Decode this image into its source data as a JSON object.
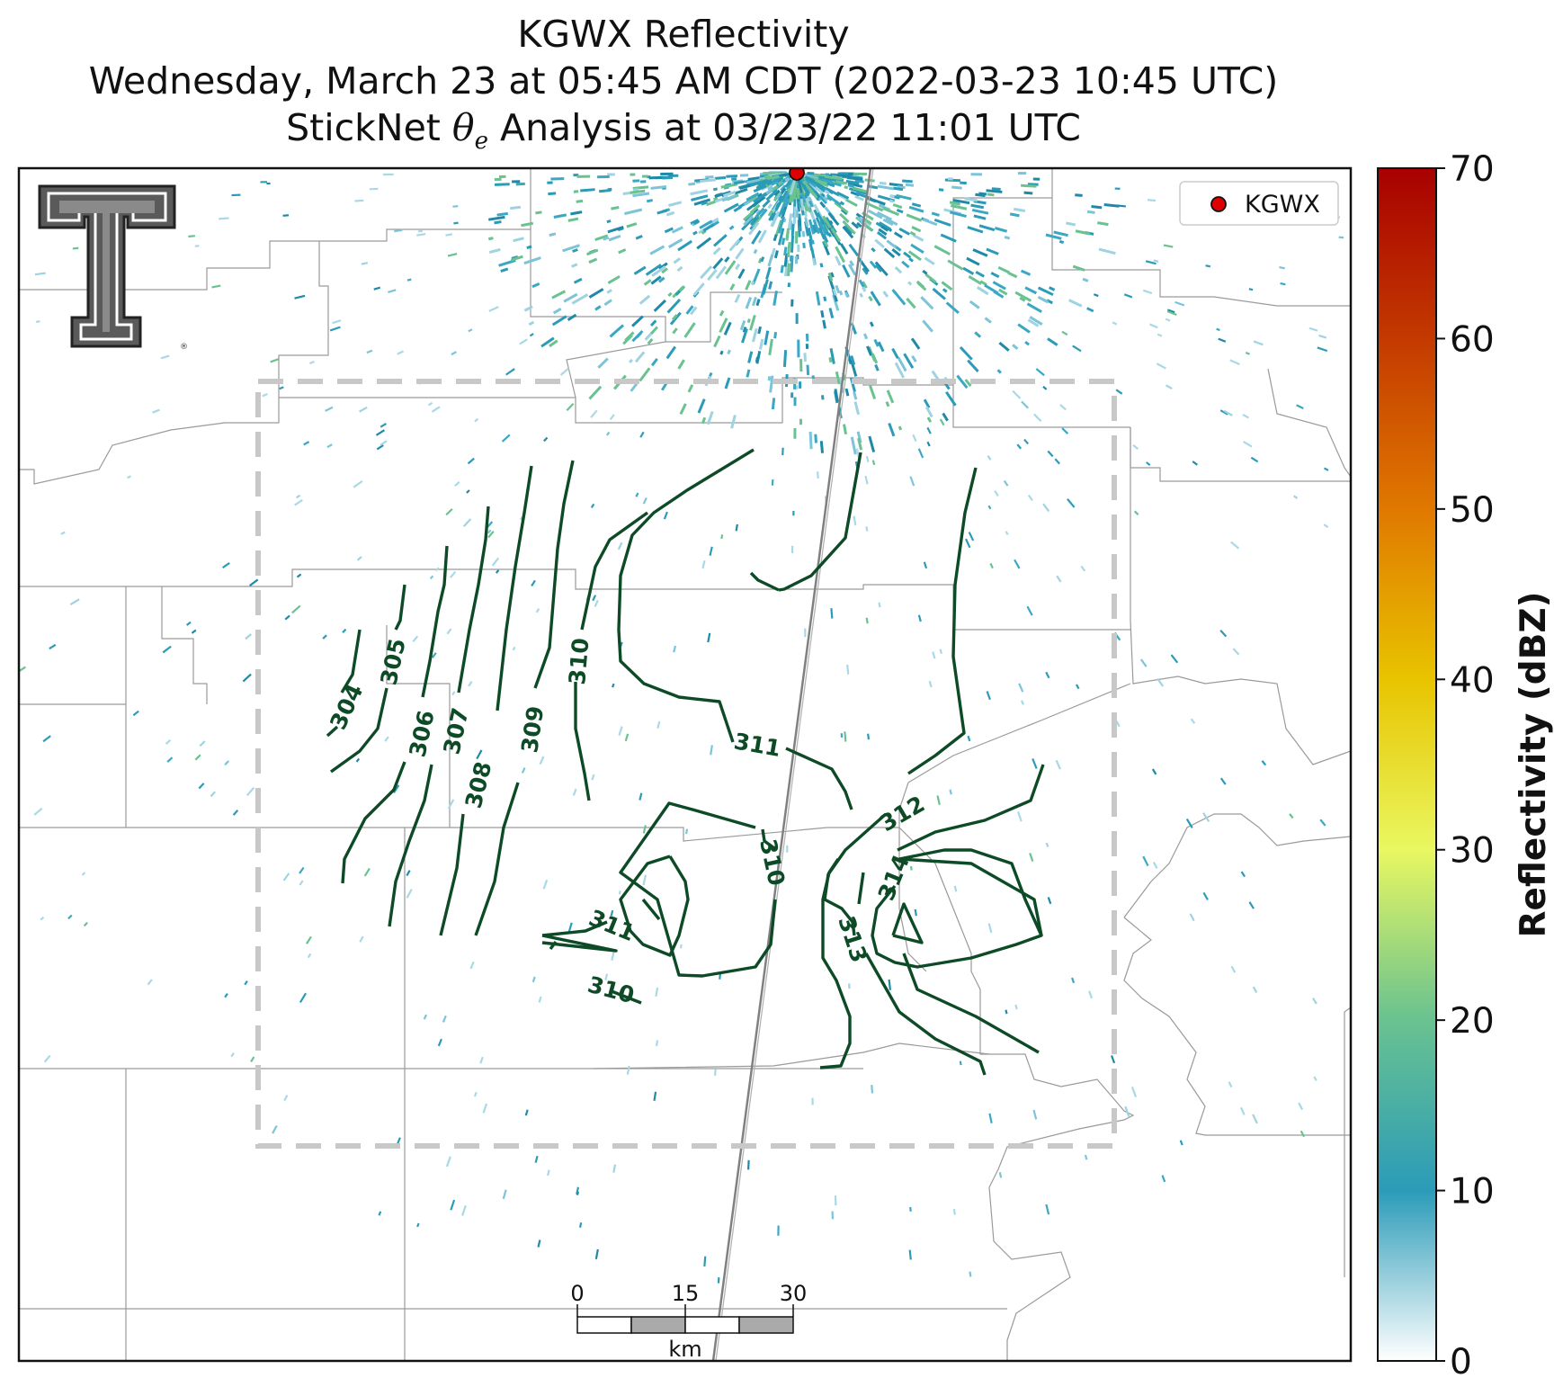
{
  "title": {
    "line1": "KGWX Reflectivity",
    "line2": "Wednesday, March 23 at 05:45 AM CDT (2022-03-23 10:45 UTC)",
    "line3": "StickNet θe Analysis at 03/23/22 11:01 UTC"
  },
  "legend": {
    "marker_label": "KGWX",
    "marker_color": "#dd0000"
  },
  "colorbar": {
    "label": "Reflectivity (dBZ)",
    "min": 0,
    "max": 70,
    "ticks": [
      "0",
      "10",
      "20",
      "30",
      "40",
      "50",
      "60",
      "70"
    ],
    "stops": [
      "#ffffff",
      "#2b9bb8",
      "#69c290",
      "#e9f761",
      "#e8c400",
      "#e07800",
      "#c33a00",
      "#a80000"
    ]
  },
  "contours": {
    "color": "#0d4a26",
    "labels": [
      "304",
      "305",
      "306",
      "307",
      "308",
      "309",
      "310",
      "311",
      "311",
      "310",
      "312",
      "314",
      "313",
      "310"
    ]
  },
  "scalebar": {
    "ticks": [
      "0",
      "15",
      "30"
    ],
    "unit": "km"
  },
  "colors": {
    "analysis_box": "#c8c8c8",
    "boundaries": "#9a9a9a",
    "storm_track": "#808080",
    "radar_echo": "#2b9bb8"
  },
  "logo": {
    "name": "Texas Tech Double T"
  }
}
